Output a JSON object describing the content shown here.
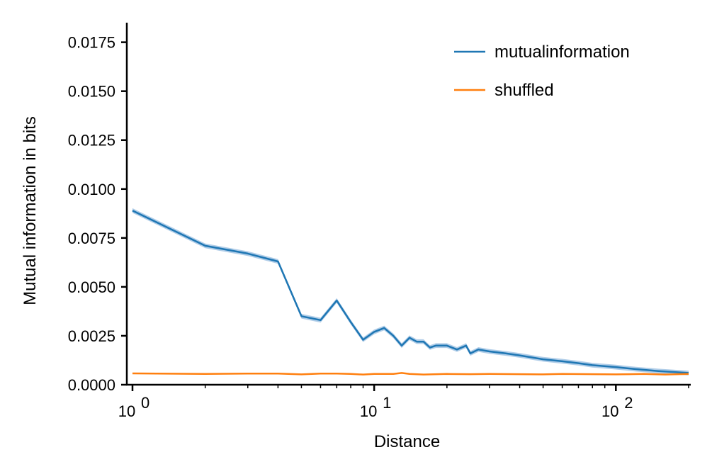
{
  "chart_data": {
    "type": "line",
    "title": "",
    "xlabel": "Distance",
    "ylabel": "Mutual information in bits",
    "xscale": "log",
    "xlim": [
      1,
      200
    ],
    "ylim": [
      0,
      0.0185
    ],
    "grid": false,
    "legend_position": "top-right",
    "x_ticks": [
      1,
      10,
      100
    ],
    "x_tick_labels": [
      {
        "base": "10",
        "exp": "0"
      },
      {
        "base": "10",
        "exp": "1"
      },
      {
        "base": "10",
        "exp": "2"
      }
    ],
    "y_ticks": [
      0,
      0.0025,
      0.005,
      0.0075,
      0.01,
      0.0125,
      0.015,
      0.0175
    ],
    "y_tick_labels": [
      "0.0000",
      "0.0025",
      "0.0050",
      "0.0075",
      "0.0100",
      "0.0125",
      "0.0150",
      "0.0175"
    ],
    "series": [
      {
        "name": "mutualinformation",
        "color": "#1f77b4",
        "band_color": "#8fb8de",
        "points": [
          [
            1,
            0.0089
          ],
          [
            2,
            0.0071
          ],
          [
            3,
            0.0067
          ],
          [
            4,
            0.0063
          ],
          [
            5,
            0.0035
          ],
          [
            6,
            0.0033
          ],
          [
            7,
            0.0043
          ],
          [
            8,
            0.0032
          ],
          [
            9,
            0.0023
          ],
          [
            10,
            0.0027
          ],
          [
            11,
            0.0029
          ],
          [
            12,
            0.0025
          ],
          [
            13,
            0.002
          ],
          [
            14,
            0.0024
          ],
          [
            15,
            0.0022
          ],
          [
            16,
            0.0022
          ],
          [
            17,
            0.0019
          ],
          [
            18,
            0.002
          ],
          [
            20,
            0.002
          ],
          [
            22,
            0.0018
          ],
          [
            24,
            0.002
          ],
          [
            25,
            0.0016
          ],
          [
            27,
            0.0018
          ],
          [
            30,
            0.0017
          ],
          [
            35,
            0.0016
          ],
          [
            40,
            0.0015
          ],
          [
            50,
            0.0013
          ],
          [
            60,
            0.0012
          ],
          [
            70,
            0.0011
          ],
          [
            80,
            0.001
          ],
          [
            100,
            0.0009
          ],
          [
            120,
            0.0008
          ],
          [
            150,
            0.0007
          ],
          [
            200,
            0.0006
          ]
        ],
        "band": 0.00012
      },
      {
        "name": "shuffled",
        "color": "#ff7f0e",
        "points": [
          [
            1,
            0.00058
          ],
          [
            2,
            0.00055
          ],
          [
            3,
            0.00057
          ],
          [
            4,
            0.00057
          ],
          [
            5,
            0.00053
          ],
          [
            6,
            0.00057
          ],
          [
            7,
            0.00057
          ],
          [
            8,
            0.00055
          ],
          [
            9,
            0.00052
          ],
          [
            10,
            0.00055
          ],
          [
            12,
            0.00055
          ],
          [
            13,
            0.0006
          ],
          [
            14,
            0.00055
          ],
          [
            16,
            0.00052
          ],
          [
            20,
            0.00055
          ],
          [
            25,
            0.00054
          ],
          [
            30,
            0.00055
          ],
          [
            40,
            0.00054
          ],
          [
            50,
            0.00053
          ],
          [
            60,
            0.00055
          ],
          [
            80,
            0.00054
          ],
          [
            100,
            0.00053
          ],
          [
            130,
            0.00055
          ],
          [
            160,
            0.00052
          ],
          [
            200,
            0.00055
          ]
        ]
      }
    ]
  }
}
